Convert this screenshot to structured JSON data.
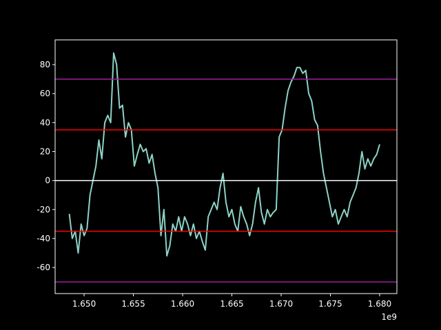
{
  "chart_data": {
    "type": "line",
    "x": [
      1648500000,
      1648800000,
      1649100000,
      1649400000,
      1649700000,
      1650000000,
      1650300000,
      1650600000,
      1650900000,
      1651200000,
      1651500000,
      1651800000,
      1652100000,
      1652400000,
      1652700000,
      1653000000,
      1653300000,
      1653600000,
      1653900000,
      1654200000,
      1654500000,
      1654800000,
      1655100000,
      1655400000,
      1655700000,
      1656000000,
      1656300000,
      1656600000,
      1656900000,
      1657200000,
      1657500000,
      1657800000,
      1658100000,
      1658400000,
      1658700000,
      1659000000,
      1659300000,
      1659600000,
      1659900000,
      1660200000,
      1660500000,
      1660800000,
      1661100000,
      1661400000,
      1661700000,
      1662000000,
      1662300000,
      1662600000,
      1662900000,
      1663200000,
      1663500000,
      1663800000,
      1664100000,
      1664400000,
      1664700000,
      1665000000,
      1665300000,
      1665600000,
      1665900000,
      1666200000,
      1666500000,
      1666800000,
      1667100000,
      1667400000,
      1667700000,
      1668000000,
      1668300000,
      1668600000,
      1668900000,
      1669200000,
      1669500000,
      1669800000,
      1670100000,
      1670400000,
      1670700000,
      1671000000,
      1671300000,
      1671600000,
      1671900000,
      1672200000,
      1672500000,
      1672800000,
      1673100000,
      1673400000,
      1673700000,
      1674000000,
      1674300000,
      1674600000,
      1674900000,
      1675200000,
      1675500000,
      1675800000,
      1676100000,
      1676400000,
      1676700000,
      1677000000,
      1677300000,
      1677600000,
      1677900000,
      1678200000,
      1678500000,
      1678800000,
      1679100000,
      1679400000,
      1679700000,
      1680000000
    ],
    "series": [
      {
        "color": "#8dd3c7",
        "values": [
          -23,
          -40,
          -35,
          -50,
          -30,
          -38,
          -33,
          -10,
          0,
          10,
          28,
          15,
          40,
          45,
          40,
          88,
          80,
          50,
          52,
          30,
          40,
          35,
          10,
          18,
          25,
          20,
          22,
          12,
          18,
          5,
          -5,
          -38,
          -20,
          -52,
          -45,
          -30,
          -35,
          -25,
          -35,
          -25,
          -30,
          -38,
          -30,
          -40,
          -35,
          -42,
          -48,
          -25,
          -20,
          -15,
          -20,
          -5,
          5,
          -15,
          -25,
          -20,
          -30,
          -35,
          -18,
          -25,
          -30,
          -38,
          -30,
          -15,
          -5,
          -22,
          -30,
          -20,
          -25,
          -22,
          -20,
          30,
          35,
          50,
          62,
          68,
          72,
          78,
          78,
          74,
          76,
          60,
          55,
          42,
          38,
          20,
          5,
          -5,
          -15,
          -25,
          -20,
          -30,
          -25,
          -20,
          -25,
          -15,
          -10,
          -5,
          5,
          20,
          8,
          15,
          10,
          15,
          18,
          25
        ]
      }
    ],
    "hlines": [
      {
        "value": 70,
        "color": "#a020a0"
      },
      {
        "value": 35,
        "color": "#ff0000"
      },
      {
        "value": 0,
        "color": "#ffffff"
      },
      {
        "value": -35,
        "color": "#ff0000"
      },
      {
        "value": -70,
        "color": "#a020a0"
      }
    ],
    "xlim": [
      1647060000,
      1681750000
    ],
    "ylim": [
      -78,
      97.1
    ],
    "xticks": [
      {
        "value": 1650000000,
        "label": "1.650"
      },
      {
        "value": 1655000000,
        "label": "1.655"
      },
      {
        "value": 1660000000,
        "label": "1.660"
      },
      {
        "value": 1665000000,
        "label": "1.665"
      },
      {
        "value": 1670000000,
        "label": "1.670"
      },
      {
        "value": 1675000000,
        "label": "1.675"
      },
      {
        "value": 1680000000,
        "label": "1.680"
      }
    ],
    "yticks": [
      -60,
      -40,
      -20,
      0,
      20,
      40,
      60,
      80
    ],
    "x_offset_label": "1e9"
  }
}
